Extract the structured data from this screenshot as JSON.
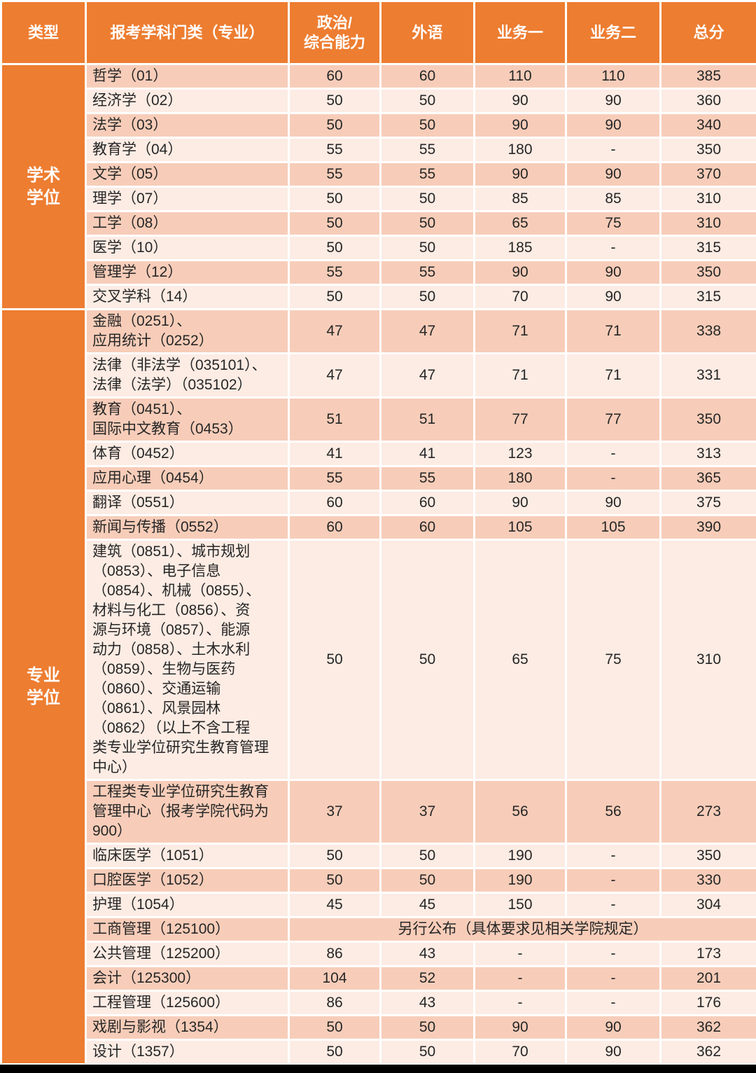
{
  "colors": {
    "accent": "#ED7D31",
    "row_dark": "#F7CDB9",
    "row_light": "#FCECE4",
    "grid": "#FFFFFF",
    "text": "#262626",
    "header_text": "#FFFFFF",
    "bottom_bar": "#000000"
  },
  "table": {
    "header": {
      "type_label": "类型",
      "subject_label": "报考学科门类（专业）",
      "politics_label": "政治/\n综合能力",
      "foreign_label": "外语",
      "business1_label": "业务一",
      "business2_label": "业务二",
      "total_label": "总分"
    },
    "groups": [
      {
        "id": "academic",
        "label": "学术\n学位",
        "rows": [
          {
            "subject": "哲学（01）",
            "scores": [
              "60",
              "60",
              "110",
              "110",
              "385"
            ]
          },
          {
            "subject": "经济学（02）",
            "scores": [
              "50",
              "50",
              "90",
              "90",
              "360"
            ]
          },
          {
            "subject": "法学（03）",
            "scores": [
              "50",
              "50",
              "90",
              "90",
              "340"
            ]
          },
          {
            "subject": "教育学（04）",
            "scores": [
              "55",
              "55",
              "180",
              "-",
              "350"
            ]
          },
          {
            "subject": "文学（05）",
            "scores": [
              "55",
              "55",
              "90",
              "90",
              "370"
            ]
          },
          {
            "subject": "理学（07）",
            "scores": [
              "50",
              "50",
              "85",
              "85",
              "310"
            ]
          },
          {
            "subject": "工学（08）",
            "scores": [
              "50",
              "50",
              "65",
              "75",
              "310"
            ]
          },
          {
            "subject": "医学（10）",
            "scores": [
              "50",
              "50",
              "185",
              "-",
              "315"
            ]
          },
          {
            "subject": "管理学（12）",
            "scores": [
              "55",
              "55",
              "90",
              "90",
              "350"
            ]
          },
          {
            "subject": "交叉学科（14）",
            "scores": [
              "50",
              "50",
              "70",
              "90",
              "315"
            ]
          }
        ]
      },
      {
        "id": "professional",
        "label": "专业\n学位",
        "rows": [
          {
            "subject": "金融（0251）、\n应用统计（0252）",
            "scores": [
              "47",
              "47",
              "71",
              "71",
              "338"
            ]
          },
          {
            "subject": "法律（非法学（035101）、\n法律（法学）（035102）",
            "scores": [
              "47",
              "47",
              "71",
              "71",
              "331"
            ]
          },
          {
            "subject": "教育（0451）、\n国际中文教育（0453）",
            "scores": [
              "51",
              "51",
              "77",
              "77",
              "350"
            ]
          },
          {
            "subject": "体育（0452）",
            "scores": [
              "41",
              "41",
              "123",
              "-",
              "313"
            ]
          },
          {
            "subject": "应用心理（0454）",
            "scores": [
              "55",
              "55",
              "180",
              "-",
              "365"
            ]
          },
          {
            "subject": "翻译（0551）",
            "scores": [
              "60",
              "60",
              "90",
              "90",
              "375"
            ]
          },
          {
            "subject": "新闻与传播（0552）",
            "scores": [
              "60",
              "60",
              "105",
              "105",
              "390"
            ]
          },
          {
            "subject": "建筑（0851）、城市规划\n（0853）、电子信息\n（0854）、机械（0855）、\n材料与化工（0856）、资\n源与环境（0857）、能源\n动力（0858）、土木水利\n（0859）、生物与医药\n（0860）、交通运输\n（0861）、风景园林\n（0862）（以上不含工程\n类专业学位研究生教育管理\n中心）",
            "scores": [
              "50",
              "50",
              "65",
              "75",
              "310"
            ]
          },
          {
            "subject": "工程类专业学位研究生教育\n管理中心（报考学院代码为\n900）",
            "scores": [
              "37",
              "37",
              "56",
              "56",
              "273"
            ]
          },
          {
            "subject": "临床医学（1051）",
            "scores": [
              "50",
              "50",
              "190",
              "-",
              "350"
            ]
          },
          {
            "subject": "口腔医学（1052）",
            "scores": [
              "50",
              "50",
              "190",
              "-",
              "330"
            ]
          },
          {
            "subject": "护理（1054）",
            "scores": [
              "45",
              "45",
              "150",
              "-",
              "304"
            ]
          },
          {
            "subject": "工商管理（125100）",
            "note": "另行公布（具体要求见相关学院规定）"
          },
          {
            "subject": "公共管理（125200）",
            "scores": [
              "86",
              "43",
              "-",
              "-",
              "173"
            ]
          },
          {
            "subject": "会计（125300）",
            "scores": [
              "104",
              "52",
              "-",
              "-",
              "201"
            ]
          },
          {
            "subject": "工程管理（125600）",
            "scores": [
              "86",
              "43",
              "-",
              "-",
              "176"
            ]
          },
          {
            "subject": "戏剧与影视（1354）",
            "scores": [
              "50",
              "50",
              "90",
              "90",
              "362"
            ]
          },
          {
            "subject": "设计（1357）",
            "scores": [
              "50",
              "50",
              "70",
              "90",
              "362"
            ]
          }
        ]
      }
    ]
  }
}
